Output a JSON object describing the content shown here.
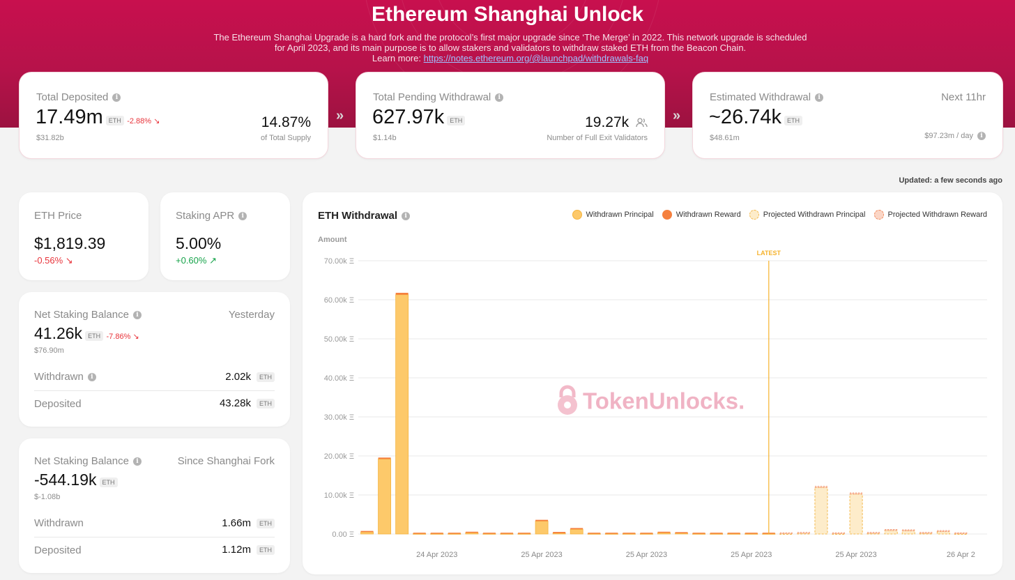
{
  "header": {
    "title": "Ethereum Shanghai Unlock",
    "desc_line1": "The Ethereum Shanghai Upgrade is a hard fork and the protocol’s first major upgrade since ‘The Merge’ in 2022. This network upgrade is scheduled",
    "desc_line2": "for April 2023, and its main purpose is to allow stakers and validators to withdraw staked ETH from the Beacon Chain.",
    "learn_more": "Learn more:",
    "link": "https://notes.ethereum.org/@launchpad/withdrawals-faq"
  },
  "cards": {
    "deposited": {
      "label": "Total Deposited",
      "value": "17.49m",
      "unit": "ETH",
      "change": "-2.88% ↘",
      "usd": "$31.82b",
      "pct": "14.87%",
      "pct_label": "of Total Supply"
    },
    "pending": {
      "label": "Total Pending Withdrawal",
      "value": "627.97k",
      "unit": "ETH",
      "usd": "$1.14b",
      "validators": "19.27k",
      "validators_label": "Number of Full Exit Validators"
    },
    "estimated": {
      "label": "Estimated Withdrawal",
      "next": "Next 11hr",
      "value": "~26.74k",
      "unit": "ETH",
      "usd": "$48.61m",
      "per_day": "$97.23m / day"
    }
  },
  "updated": "Updated: a few seconds ago",
  "price": {
    "label": "ETH Price",
    "value": "$1,819.39",
    "change": "-0.56% ↘"
  },
  "apr": {
    "label": "Staking APR",
    "value": "5.00%",
    "change": "+0.60% ↗"
  },
  "net_yesterday": {
    "label": "Net Staking Balance",
    "period": "Yesterday",
    "value": "41.26k",
    "unit": "ETH",
    "change": "-7.86% ↘",
    "usd": "$76.90m",
    "withdrawn_label": "Withdrawn",
    "withdrawn": "2.02k",
    "deposited_label": "Deposited",
    "deposited": "43.28k"
  },
  "net_fork": {
    "label": "Net Staking Balance",
    "period": "Since Shanghai Fork",
    "value": "-544.19k",
    "unit": "ETH",
    "usd": "$-1.08b",
    "withdrawn_label": "Withdrawn",
    "withdrawn": "1.66m",
    "deposited_label": "Deposited",
    "deposited": "1.12m"
  },
  "watermark": "TokenUnlocks.",
  "chart_data": {
    "type": "bar",
    "title": "ETH Withdrawal",
    "ylabel": "Amount",
    "ylim": [
      0,
      70000
    ],
    "yticks": [
      "0.00 Ξ",
      "10.00k Ξ",
      "20.00k Ξ",
      "30.00k Ξ",
      "40.00k Ξ",
      "50.00k Ξ",
      "60.00k Ξ",
      "70.00k Ξ"
    ],
    "xticks": [
      "24 Apr 2023",
      "25 Apr 2023",
      "25 Apr 2023",
      "25 Apr 2023",
      "25 Apr 2023",
      "26 Apr 2"
    ],
    "latest_label": "LATEST",
    "latest_index": 23,
    "legend": [
      "Withdrawn Principal",
      "Withdrawn Reward",
      "Projected Withdrawn Principal",
      "Projected Withdrawn Reward"
    ],
    "colors": {
      "principal": "#fdc96a",
      "reward": "#f5803e",
      "proj_principal": "#fdecca",
      "proj_reward": "#fbd6c6",
      "latest": "#f6b22c"
    },
    "series": [
      {
        "name": "Withdrawn Principal",
        "values": [
          500,
          19200,
          61300,
          100,
          100,
          100,
          300,
          100,
          100,
          100,
          3300,
          200,
          1200,
          100,
          100,
          100,
          100,
          300,
          200,
          100,
          100,
          100,
          100,
          100,
          0,
          0,
          0,
          0,
          0,
          0,
          0,
          0,
          0,
          0,
          0,
          0
        ]
      },
      {
        "name": "Withdrawn Reward",
        "values": [
          100,
          200,
          300,
          50,
          50,
          50,
          100,
          50,
          50,
          50,
          150,
          150,
          150,
          50,
          50,
          50,
          50,
          100,
          100,
          50,
          50,
          50,
          50,
          50,
          0,
          0,
          0,
          0,
          0,
          0,
          0,
          0,
          0,
          0,
          0,
          0
        ]
      },
      {
        "name": "Projected Withdrawn Principal",
        "values": [
          0,
          0,
          0,
          0,
          0,
          0,
          0,
          0,
          0,
          0,
          0,
          0,
          0,
          0,
          0,
          0,
          0,
          0,
          0,
          0,
          0,
          0,
          0,
          0,
          100,
          200,
          11900,
          100,
          10200,
          200,
          900,
          800,
          200,
          600,
          100,
          0
        ]
      },
      {
        "name": "Projected Withdrawn Reward",
        "values": [
          0,
          0,
          0,
          0,
          0,
          0,
          0,
          0,
          0,
          0,
          0,
          0,
          0,
          0,
          0,
          0,
          0,
          0,
          0,
          0,
          0,
          0,
          0,
          0,
          50,
          50,
          150,
          50,
          150,
          50,
          100,
          100,
          50,
          100,
          50,
          0
        ]
      }
    ]
  }
}
